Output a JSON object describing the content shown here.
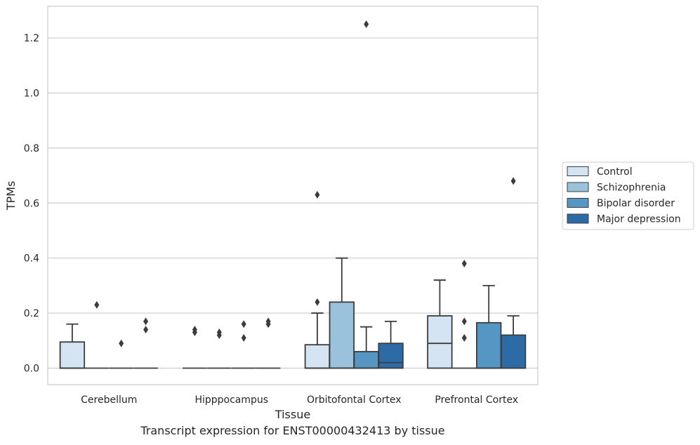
{
  "chart_data": {
    "type": "box",
    "xlabel": "Tissue",
    "ylabel": "TPMs",
    "caption": "Transcript expression for ENST00000432413 by tissue",
    "ylim": [
      -0.06,
      1.315
    ],
    "yticks": [
      0.0,
      0.2,
      0.4,
      0.6,
      0.8,
      1.0,
      1.2
    ],
    "ytick_labels": [
      "0.0",
      "0.2",
      "0.4",
      "0.6",
      "0.8",
      "1.0",
      "1.2"
    ],
    "grid": "horizontal",
    "legend_position": "right",
    "categories": [
      "Cerebellum",
      "Hipppocampus",
      "Orbitofontal Cortex",
      "Prefrontal Cortex"
    ],
    "series": [
      {
        "name": "Control",
        "color": "#d4e4f2",
        "boxes": [
          {
            "q1": 0.0,
            "median": 0.0,
            "q3": 0.095,
            "whisker_low": 0.0,
            "whisker_high": 0.16,
            "outliers": []
          },
          {
            "q1": 0.0,
            "median": 0.0,
            "q3": 0.0,
            "whisker_low": 0.0,
            "whisker_high": 0.0,
            "outliers": [
              0.13,
              0.14
            ]
          },
          {
            "q1": 0.0,
            "median": 0.0,
            "q3": 0.085,
            "whisker_low": 0.0,
            "whisker_high": 0.2,
            "outliers": [
              0.24,
              0.63
            ]
          },
          {
            "q1": 0.0,
            "median": 0.09,
            "q3": 0.19,
            "whisker_low": 0.0,
            "whisker_high": 0.32,
            "outliers": []
          }
        ]
      },
      {
        "name": "Schizophrenia",
        "color": "#9ac2dc",
        "boxes": [
          {
            "q1": 0.0,
            "median": 0.0,
            "q3": 0.0,
            "whisker_low": 0.0,
            "whisker_high": 0.0,
            "outliers": [
              0.23
            ]
          },
          {
            "q1": 0.0,
            "median": 0.0,
            "q3": 0.0,
            "whisker_low": 0.0,
            "whisker_high": 0.0,
            "outliers": [
              0.12,
              0.13
            ]
          },
          {
            "q1": 0.0,
            "median": 0.0,
            "q3": 0.24,
            "whisker_low": 0.0,
            "whisker_high": 0.4,
            "outliers": []
          },
          {
            "q1": 0.0,
            "median": 0.0,
            "q3": 0.0,
            "whisker_low": 0.0,
            "whisker_high": 0.0,
            "outliers": [
              0.11,
              0.17,
              0.38
            ]
          }
        ]
      },
      {
        "name": "Bipolar disorder",
        "color": "#5596c5",
        "boxes": [
          {
            "q1": 0.0,
            "median": 0.0,
            "q3": 0.0,
            "whisker_low": 0.0,
            "whisker_high": 0.0,
            "outliers": [
              0.09
            ]
          },
          {
            "q1": 0.0,
            "median": 0.0,
            "q3": 0.0,
            "whisker_low": 0.0,
            "whisker_high": 0.0,
            "outliers": [
              0.11,
              0.16
            ]
          },
          {
            "q1": 0.0,
            "median": 0.0,
            "q3": 0.06,
            "whisker_low": 0.0,
            "whisker_high": 0.15,
            "outliers": [
              1.25
            ]
          },
          {
            "q1": 0.0,
            "median": 0.0,
            "q3": 0.165,
            "whisker_low": 0.0,
            "whisker_high": 0.3,
            "outliers": []
          }
        ]
      },
      {
        "name": "Major depression",
        "color": "#2d6ba7",
        "boxes": [
          {
            "q1": 0.0,
            "median": 0.0,
            "q3": 0.0,
            "whisker_low": 0.0,
            "whisker_high": 0.0,
            "outliers": [
              0.14,
              0.17
            ]
          },
          {
            "q1": 0.0,
            "median": 0.0,
            "q3": 0.0,
            "whisker_low": 0.0,
            "whisker_high": 0.0,
            "outliers": [
              0.16,
              0.17
            ]
          },
          {
            "q1": 0.0,
            "median": 0.02,
            "q3": 0.09,
            "whisker_low": 0.0,
            "whisker_high": 0.17,
            "outliers": []
          },
          {
            "q1": 0.0,
            "median": 0.0,
            "q3": 0.12,
            "whisker_low": 0.0,
            "whisker_high": 0.19,
            "outliers": [
              0.68
            ]
          }
        ]
      }
    ]
  }
}
